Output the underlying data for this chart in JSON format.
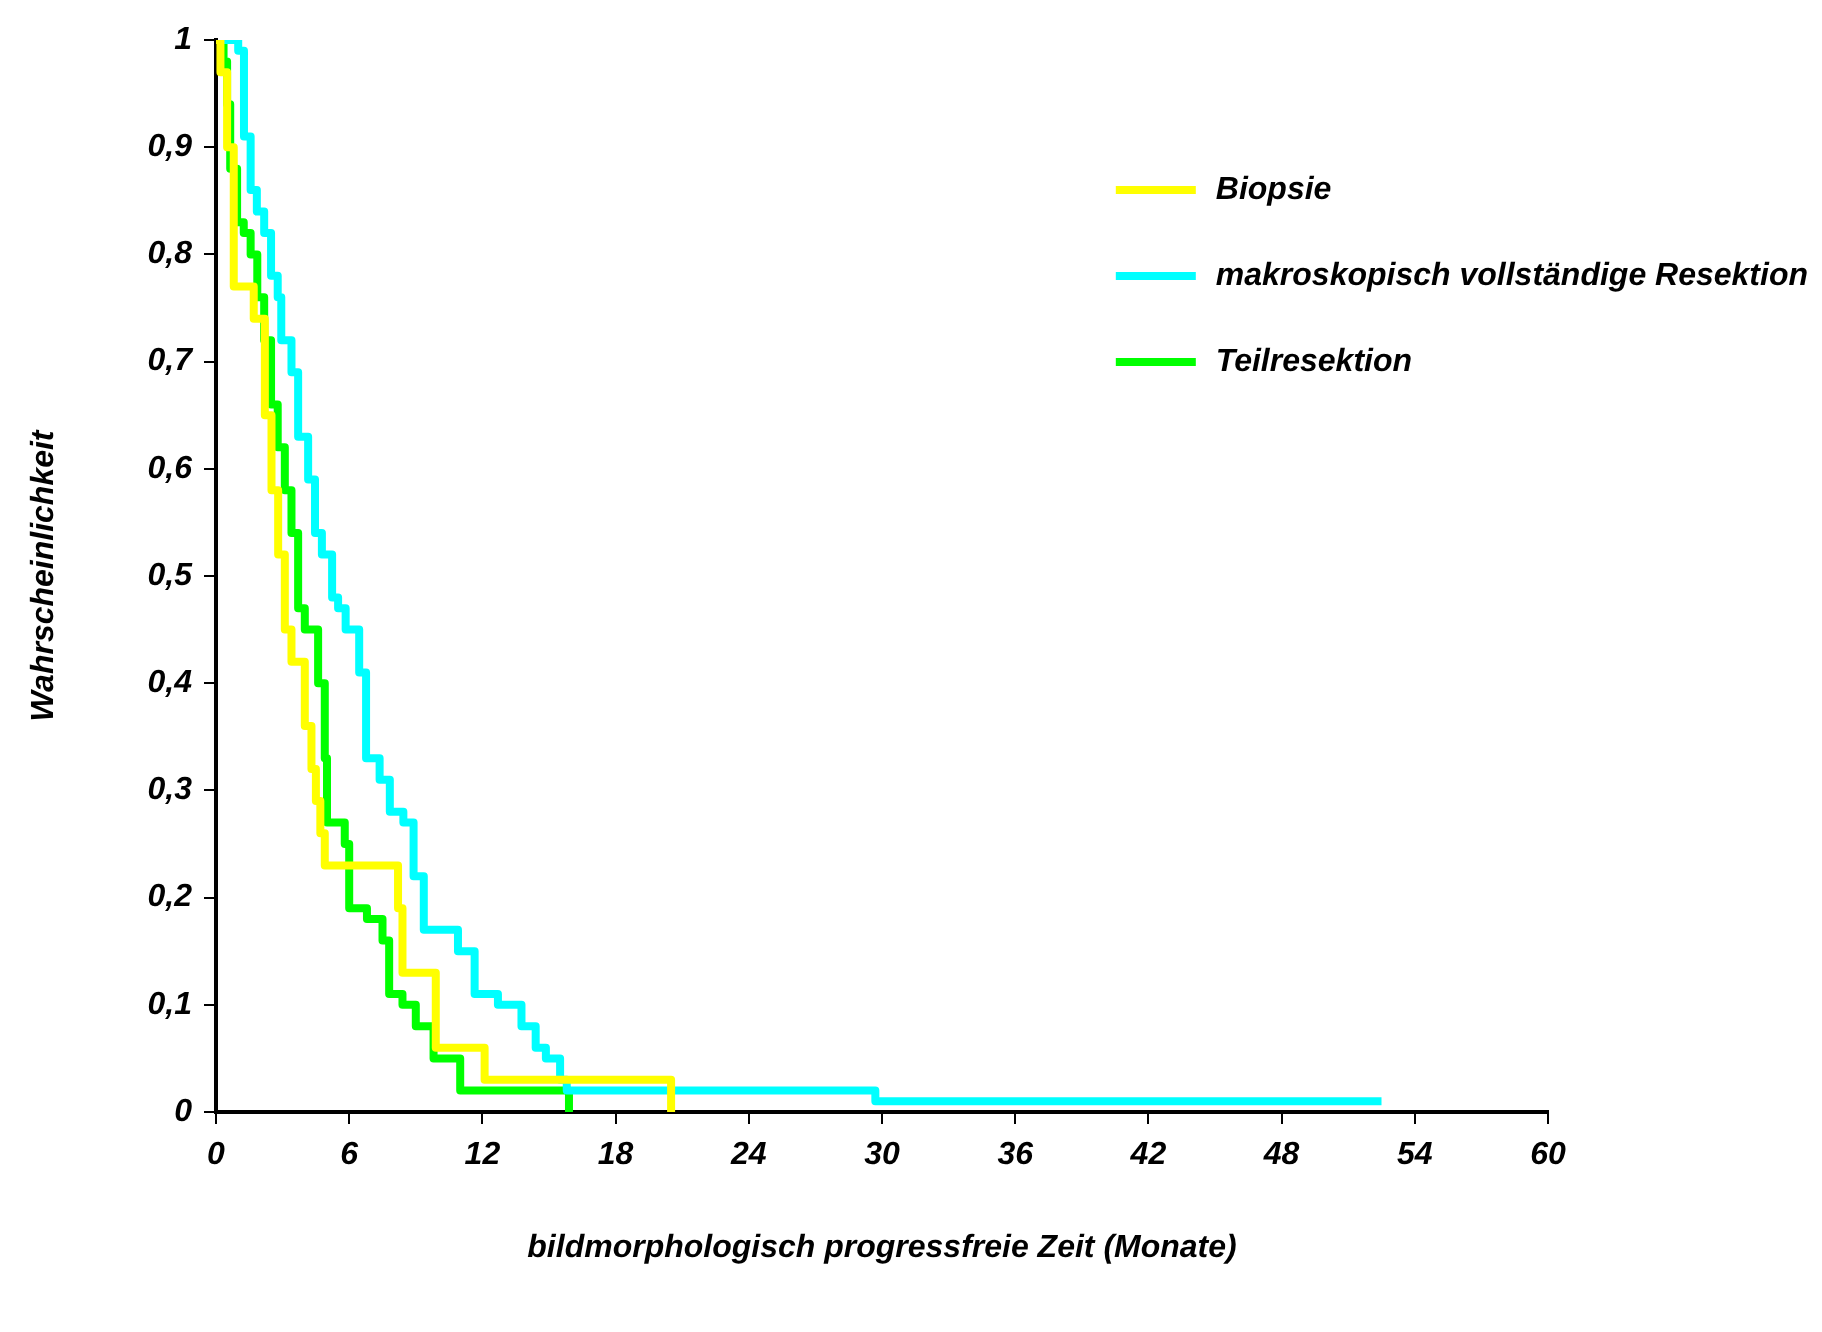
{
  "chart_data": {
    "type": "step",
    "xlabel": "bildmorphologisch progressfreie Zeit (Monate)",
    "ylabel": "Wahrscheinlichkeit",
    "xlim": [
      0,
      60
    ],
    "xticks": [
      0,
      6,
      12,
      18,
      24,
      30,
      36,
      42,
      48,
      54,
      60
    ],
    "ylim": [
      0,
      1
    ],
    "yticks": [
      0,
      {
        "value": 0.1,
        "label": "0,1"
      },
      {
        "value": 0.2,
        "label": "0,2"
      },
      {
        "value": 0.3,
        "label": "0,3"
      },
      {
        "value": 0.4,
        "label": "0,4"
      },
      {
        "value": 0.5,
        "label": "0,5"
      },
      {
        "value": 0.6,
        "label": "0,6"
      },
      {
        "value": 0.7,
        "label": "0,7"
      },
      {
        "value": 0.8,
        "label": "0,8"
      },
      {
        "value": 0.9,
        "label": "0,9"
      },
      1
    ],
    "grid": false,
    "legend": "top right",
    "marker": "none",
    "line_style": "solid",
    "series": [
      {
        "name": "Biopsie",
        "color": "#ffff00",
        "x": [
          0,
          0.2,
          0.5,
          0.8,
          1.7,
          2.2,
          2.5,
          2.8,
          3.1,
          3.4,
          4.0,
          4.3,
          4.5,
          4.7,
          4.9,
          8.2,
          8.4,
          9.9,
          12.1,
          20.5
        ],
        "values": [
          1,
          0.97,
          0.9,
          0.77,
          0.74,
          0.65,
          0.58,
          0.52,
          0.45,
          0.42,
          0.36,
          0.32,
          0.29,
          0.26,
          0.23,
          0.19,
          0.13,
          0.06,
          0.03,
          0
        ]
      },
      {
        "name": "makroskopisch vollständige Resektion",
        "color": "#00ffff",
        "x": [
          0,
          1.0,
          1.26,
          1.56,
          1.84,
          2.17,
          2.48,
          2.78,
          2.94,
          3.4,
          3.7,
          4.15,
          4.46,
          4.77,
          5.23,
          5.5,
          5.84,
          6.45,
          6.76,
          7.37,
          7.83,
          8.44,
          8.9,
          9.36,
          10.9,
          11.65,
          12.7,
          13.76,
          14.4,
          14.86,
          15.5,
          15.8,
          29.7,
          52.5
        ],
        "values": [
          1,
          0.99,
          0.91,
          0.86,
          0.84,
          0.82,
          0.78,
          0.76,
          0.72,
          0.69,
          0.63,
          0.59,
          0.54,
          0.52,
          0.48,
          0.47,
          0.45,
          0.41,
          0.33,
          0.31,
          0.28,
          0.27,
          0.22,
          0.17,
          0.15,
          0.11,
          0.1,
          0.08,
          0.06,
          0.05,
          0.03,
          0.02,
          0.01,
          0.01
        ]
      },
      {
        "name": "Teilresektion",
        "color": "#00ff00",
        "x": [
          0,
          0.34,
          0.5,
          0.64,
          0.95,
          1.25,
          1.56,
          1.86,
          2.17,
          2.48,
          2.78,
          3.1,
          3.4,
          3.7,
          4.0,
          4.6,
          4.9,
          5.0,
          5.8,
          6.0,
          6.8,
          7.5,
          7.8,
          8.4,
          9.0,
          9.8,
          11.0,
          15.9
        ],
        "values": [
          1,
          0.98,
          0.94,
          0.88,
          0.83,
          0.82,
          0.8,
          0.76,
          0.72,
          0.66,
          0.62,
          0.58,
          0.54,
          0.47,
          0.45,
          0.4,
          0.33,
          0.27,
          0.25,
          0.19,
          0.18,
          0.16,
          0.11,
          0.1,
          0.08,
          0.05,
          0.02,
          0
        ]
      }
    ]
  }
}
